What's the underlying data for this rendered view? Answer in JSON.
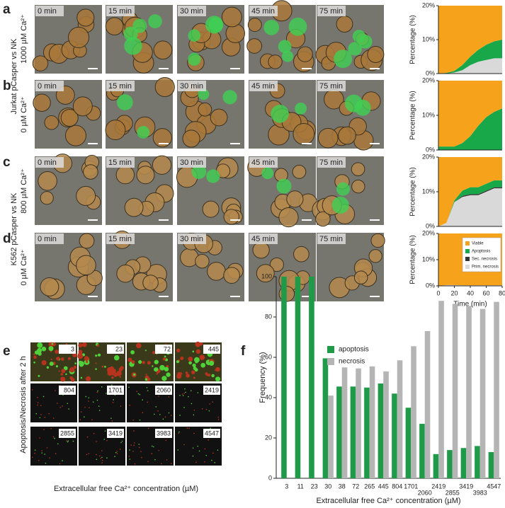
{
  "figure": {
    "panel_letters": [
      "a",
      "b",
      "c",
      "d",
      "e",
      "f"
    ],
    "time_labels": [
      "0 min",
      "15 min",
      "30 min",
      "45 min",
      "75 min"
    ],
    "row_labels": [
      "Jurkat pCasper vs NK",
      "1000 µM Ca²⁺",
      "0 µM Ca²⁺",
      "K562 pCasper vs NK",
      "800 µM Ca²⁺",
      "0 µM Ca²⁺"
    ],
    "image_grid": {
      "concentrations": [
        "3",
        "23",
        "72",
        "445",
        "804",
        "1701",
        "2060",
        "2419",
        "2855",
        "3419",
        "3983",
        "4547"
      ],
      "ylabel": "Apoptosis/Necrosis after 2 h",
      "xlabel": "Extracellular free Ca²⁺ concentration (µM)"
    }
  },
  "chart_data": [
    {
      "type": "area",
      "ylabel": "Percentage (%)",
      "x": [
        0,
        10,
        20,
        30,
        40,
        50,
        60,
        70,
        80
      ],
      "xlim": [
        0,
        80
      ],
      "ylim": [
        0,
        20
      ],
      "yticks": [
        {
          "value": 0,
          "label": "0%"
        },
        {
          "value": 10,
          "label": "10%"
        },
        {
          "value": 20,
          "label": "20%"
        }
      ],
      "series": [
        {
          "color": "#f7a21b",
          "values": [
            100,
            99.8,
            99.2,
            97.5,
            95,
            93,
            91.5,
            90.5,
            90
          ]
        },
        {
          "color": "#18a84a",
          "values": [
            0,
            0.2,
            0.5,
            1.5,
            2.5,
            3.5,
            4.5,
            5,
            5.5
          ]
        },
        {
          "color": "#333333",
          "values": [
            0,
            0,
            0,
            0,
            0,
            0,
            0,
            0,
            0
          ]
        },
        {
          "color": "#d9d9d9",
          "values": [
            0,
            0,
            0.3,
            1,
            2.5,
            3.5,
            4,
            4.5,
            4.5
          ]
        }
      ]
    },
    {
      "type": "area",
      "ylabel": "Percentage (%)",
      "x": [
        0,
        10,
        20,
        30,
        40,
        50,
        60,
        70,
        80
      ],
      "xlim": [
        0,
        80
      ],
      "ylim": [
        0,
        20
      ],
      "yticks": [
        {
          "value": 0,
          "label": "0%"
        },
        {
          "value": 10,
          "label": "10%"
        },
        {
          "value": 20,
          "label": "20%"
        }
      ],
      "series": [
        {
          "color": "#f7a21b",
          "values": [
            99,
            99,
            99,
            98,
            96,
            93,
            90.5,
            89,
            88
          ]
        },
        {
          "color": "#18a84a",
          "values": [
            1,
            1,
            1,
            2,
            4,
            7,
            9.5,
            11,
            12
          ]
        },
        {
          "color": "#333333",
          "values": [
            0,
            0,
            0,
            0,
            0,
            0,
            0,
            0,
            0
          ]
        },
        {
          "color": "#d9d9d9",
          "values": [
            0,
            0,
            0,
            0,
            0,
            0,
            0,
            0,
            0
          ]
        }
      ]
    },
    {
      "type": "area",
      "ylabel": "Percentage (%)",
      "x": [
        0,
        10,
        20,
        30,
        40,
        50,
        60,
        70,
        80
      ],
      "xlim": [
        0,
        80
      ],
      "ylim": [
        0,
        20
      ],
      "yticks": [
        {
          "value": 0,
          "label": "0%"
        },
        {
          "value": 10,
          "label": "10%"
        },
        {
          "value": 20,
          "label": "20%"
        }
      ],
      "series": [
        {
          "color": "#f7a21b",
          "values": [
            100,
            99,
            92.5,
            89.7,
            88.7,
            88.7,
            87.7,
            86.7,
            86.7
          ]
        },
        {
          "color": "#18a84a",
          "values": [
            0,
            0,
            0.5,
            1.5,
            2,
            2,
            2,
            2,
            2
          ]
        },
        {
          "color": "#333333",
          "values": [
            0,
            0,
            0,
            0.3,
            0.3,
            0.3,
            0.3,
            0.3,
            0.3
          ]
        },
        {
          "color": "#d9d9d9",
          "values": [
            0,
            1,
            7,
            8.5,
            9,
            9,
            10,
            11,
            11
          ]
        }
      ]
    },
    {
      "type": "area",
      "ylabel": "Percentage (%)",
      "xlabel": "Time (min)",
      "x": [
        0,
        10,
        20,
        30,
        40,
        50,
        60,
        70,
        80
      ],
      "xlim": [
        0,
        80
      ],
      "xticks": [
        0,
        20,
        40,
        60,
        80
      ],
      "ylim": [
        0,
        20
      ],
      "yticks": [
        {
          "value": 0,
          "label": "0%"
        },
        {
          "value": 10,
          "label": "10%"
        },
        {
          "value": 20,
          "label": "20%"
        }
      ],
      "legend": "upper right",
      "series": [
        {
          "name": "Viable",
          "color": "#f7a21b",
          "values": [
            100,
            99.7,
            99.7,
            99.8,
            99.8,
            99.8,
            99.8,
            99.8,
            99.8
          ]
        },
        {
          "name": "Apoptosis",
          "color": "#18a84a",
          "values": [
            0,
            0,
            0,
            0,
            0,
            0,
            0,
            0,
            0
          ]
        },
        {
          "name": "Sec. necrosis",
          "color": "#333333",
          "values": [
            0,
            0,
            0,
            0,
            0,
            0,
            0,
            0,
            0
          ]
        },
        {
          "name": "Prim. necrosis",
          "color": "#d9d9d9",
          "values": [
            0,
            0.3,
            0.3,
            0.2,
            0.2,
            0.2,
            0.2,
            0.2,
            0.2
          ]
        }
      ]
    },
    {
      "type": "bar",
      "ylabel": "Frequency (%)",
      "xlabel": "Extracellular free Ca²⁺ concentration (µM)",
      "categories": [
        "3",
        "11",
        "23",
        "30",
        "38",
        "72",
        "265",
        "445",
        "804",
        "1701",
        "2060",
        "2419",
        "2855",
        "3419",
        "3983",
        "4547"
      ],
      "ylim": [
        0,
        100
      ],
      "yticks": [
        0,
        20,
        40,
        60,
        80,
        100
      ],
      "legend": "upper left",
      "series": [
        {
          "name": "apoptosis",
          "color": "#1e9a48",
          "values": [
            100,
            100,
            100,
            59.5,
            45.5,
            45.5,
            45,
            47,
            42,
            35,
            27,
            12,
            14,
            15,
            16,
            13
          ]
        },
        {
          "name": "necrosis",
          "color": "#b5b5b5",
          "values": [
            0,
            0,
            0,
            41,
            55,
            54.5,
            55.5,
            53,
            58.5,
            65.5,
            73,
            88,
            86.5,
            85.5,
            84,
            87.5
          ]
        }
      ]
    }
  ]
}
